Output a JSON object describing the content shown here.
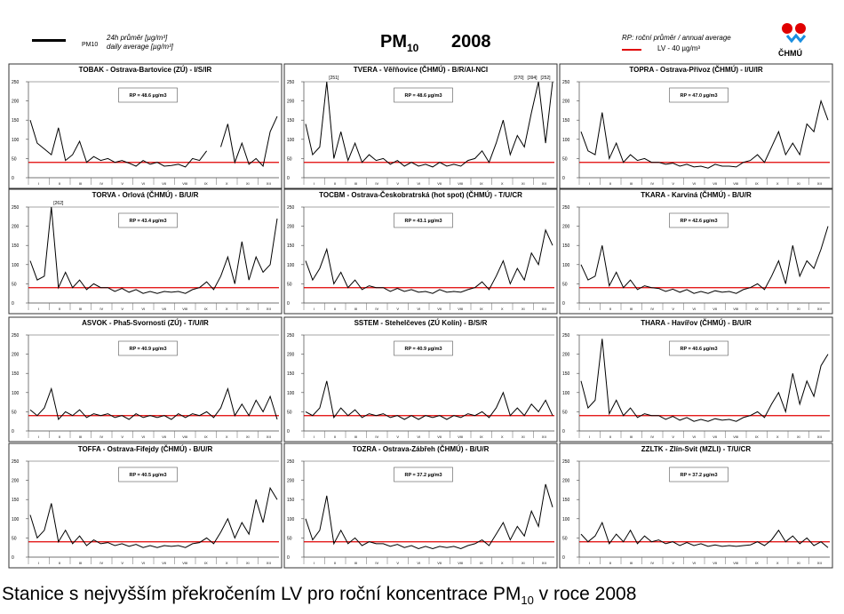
{
  "header": {
    "legend_pm_label": "PM10",
    "legend_daily_cz": "24h průměr [µg/m³]",
    "legend_daily_en": "daily average [µg/m³]",
    "title_main": "PM",
    "title_sub": "10",
    "year": "2008",
    "rp_legend": "RP: roční průměr / annual average",
    "lv_legend": "LV - 40 µg/m³",
    "logo_text": "ČHMÚ"
  },
  "caption": {
    "before": "Stanice s nejvyšším překročením LV pro roční koncentrace PM",
    "sub": "10",
    "after": " v roce 2008"
  },
  "colors": {
    "lv": "#e00000",
    "series": "#000000"
  },
  "chart_data": [
    {
      "type": "line",
      "title": "TOBAK - Ostrava-Bartovice (ZÚ) - I/S/IR",
      "rp": "RP = 48.6 µg/m3",
      "ylim": [
        0,
        250
      ],
      "yticks": [
        "0",
        "50",
        "100",
        "150",
        "200",
        "250"
      ],
      "lv": 40,
      "months": [
        "I",
        "II",
        "III",
        "IV",
        "V",
        "VI",
        "VII",
        "VIII",
        "IX",
        "X",
        "XI",
        "XII"
      ],
      "annotations": [],
      "values": [
        150,
        90,
        75,
        60,
        130,
        45,
        60,
        95,
        40,
        55,
        45,
        50,
        40,
        45,
        38,
        30,
        45,
        35,
        40,
        30,
        32,
        35,
        28,
        50,
        45,
        70,
        null,
        80,
        140,
        40,
        90,
        35,
        50,
        30,
        120,
        160
      ]
    },
    {
      "type": "line",
      "title": "TVERA - Věřňovice (ČHMÚ) - B/R/AI-NCI",
      "rp": "RP = 48.6 µg/m3",
      "ylim": [
        0,
        250
      ],
      "yticks": [
        "0",
        "50",
        "100",
        "150",
        "200",
        "250"
      ],
      "lv": 40,
      "months": [
        "I",
        "II",
        "III",
        "IV",
        "V",
        "VI",
        "VII",
        "VIII",
        "IX",
        "X",
        "XI",
        "XII"
      ],
      "annotations": [
        "[251]",
        "[270]",
        "[394]",
        "[252]"
      ],
      "values": [
        140,
        60,
        80,
        250,
        50,
        120,
        45,
        90,
        40,
        60,
        45,
        50,
        35,
        45,
        30,
        40,
        30,
        35,
        28,
        40,
        30,
        35,
        30,
        45,
        50,
        70,
        40,
        90,
        150,
        60,
        110,
        80,
        170,
        250,
        90,
        250
      ]
    },
    {
      "type": "line",
      "title": "TOPRA - Ostrava-Přívoz (ČHMÚ) - I/U/IR",
      "rp": "RP = 47.0 µg/m3",
      "ylim": [
        0,
        250
      ],
      "yticks": [
        "0",
        "50",
        "100",
        "150",
        "200",
        "250"
      ],
      "lv": 40,
      "months": [
        "I",
        "II",
        "III",
        "IV",
        "V",
        "VI",
        "VII",
        "VIII",
        "IX",
        "X",
        "XI",
        "XII"
      ],
      "annotations": [],
      "values": [
        120,
        70,
        60,
        170,
        50,
        90,
        40,
        60,
        45,
        50,
        40,
        40,
        35,
        38,
        30,
        35,
        28,
        30,
        25,
        35,
        30,
        30,
        28,
        40,
        45,
        60,
        40,
        80,
        120,
        60,
        90,
        60,
        140,
        120,
        200,
        150
      ]
    },
    {
      "type": "line",
      "title": "TORVA - Orlová (ČHMÚ) - B/U/R",
      "rp": "RP = 43.4 µg/m3",
      "ylim": [
        0,
        250
      ],
      "yticks": [
        "0",
        "50",
        "100",
        "150",
        "200",
        "250"
      ],
      "lv": 40,
      "months": [
        "I",
        "II",
        "III",
        "IV",
        "V",
        "VI",
        "VII",
        "VIII",
        "IX",
        "X",
        "XI",
        "XII"
      ],
      "annotations": [
        "[262]"
      ],
      "values": [
        110,
        60,
        70,
        250,
        40,
        80,
        40,
        60,
        35,
        50,
        40,
        40,
        30,
        38,
        28,
        35,
        25,
        30,
        25,
        30,
        28,
        30,
        25,
        35,
        40,
        55,
        35,
        70,
        120,
        50,
        160,
        60,
        120,
        80,
        100,
        220
      ]
    },
    {
      "type": "line",
      "title": "TOCBM - Ostrava-Českobratrská (hot spot) (ČHMÚ) - T/U/CR",
      "rp": "RP = 43.1 µg/m3",
      "ylim": [
        0,
        250
      ],
      "yticks": [
        "0",
        "50",
        "100",
        "150",
        "200",
        "250"
      ],
      "lv": 40,
      "months": [
        "I",
        "II",
        "III",
        "IV",
        "V",
        "VI",
        "VII",
        "VIII",
        "IX",
        "X",
        "XI",
        "XII"
      ],
      "annotations": [],
      "values": [
        110,
        60,
        90,
        140,
        50,
        80,
        40,
        60,
        35,
        45,
        40,
        40,
        30,
        38,
        30,
        35,
        28,
        30,
        25,
        35,
        28,
        30,
        28,
        35,
        40,
        55,
        35,
        70,
        110,
        50,
        90,
        60,
        130,
        100,
        190,
        150
      ]
    },
    {
      "type": "line",
      "title": "TKARA - Karviná (ČHMÚ) - B/U/R",
      "rp": "RP = 42.6 µg/m3",
      "ylim": [
        0,
        250
      ],
      "yticks": [
        "0",
        "50",
        "100",
        "150",
        "200",
        "250"
      ],
      "lv": 40,
      "months": [
        "I",
        "II",
        "III",
        "IV",
        "V",
        "VI",
        "VII",
        "VIII",
        "IX",
        "X",
        "XI",
        "XII"
      ],
      "annotations": [],
      "values": [
        100,
        60,
        70,
        150,
        45,
        80,
        40,
        60,
        35,
        45,
        40,
        38,
        30,
        36,
        28,
        35,
        25,
        30,
        25,
        32,
        28,
        30,
        25,
        35,
        40,
        50,
        35,
        70,
        110,
        50,
        150,
        70,
        110,
        90,
        140,
        200
      ]
    },
    {
      "type": "line",
      "title": "ASVOK - Pha5-Svornosti (ZÚ) - T/U/IR",
      "rp": "RP = 40.9 µg/m3",
      "ylim": [
        0,
        250
      ],
      "yticks": [
        "0",
        "50",
        "100",
        "150",
        "200",
        "250"
      ],
      "lv": 40,
      "months": [
        "I",
        "II",
        "III",
        "IV",
        "V",
        "VI",
        "VII",
        "VIII",
        "IX",
        "X",
        "XI",
        "XII"
      ],
      "annotations": [],
      "values": [
        55,
        40,
        60,
        110,
        30,
        50,
        40,
        55,
        35,
        45,
        40,
        45,
        35,
        40,
        30,
        45,
        35,
        40,
        35,
        40,
        30,
        45,
        35,
        45,
        40,
        50,
        35,
        60,
        110,
        40,
        70,
        40,
        80,
        50,
        90,
        30
      ]
    },
    {
      "type": "line",
      "title": "SSTEM - Stehelčeves (ZÚ Kolín) - B/S/R",
      "rp": "RP = 40.9 µg/m3",
      "ylim": [
        0,
        250
      ],
      "yticks": [
        "0",
        "50",
        "100",
        "150",
        "200",
        "250"
      ],
      "lv": 40,
      "months": [
        "I",
        "II",
        "III",
        "IV",
        "V",
        "VI",
        "VII",
        "VIII",
        "IX",
        "X",
        "XI",
        "XII"
      ],
      "annotations": [],
      "values": [
        50,
        40,
        60,
        130,
        35,
        60,
        40,
        55,
        35,
        45,
        40,
        45,
        35,
        40,
        30,
        40,
        30,
        40,
        35,
        40,
        30,
        40,
        35,
        45,
        40,
        50,
        35,
        60,
        100,
        40,
        60,
        40,
        70,
        50,
        80,
        40
      ]
    },
    {
      "type": "line",
      "title": "THARA - Havířov (ČHMÚ) - B/U/R",
      "rp": "RP = 40.6 µg/m3",
      "ylim": [
        0,
        250
      ],
      "yticks": [
        "0",
        "50",
        "100",
        "150",
        "200",
        "250"
      ],
      "lv": 40,
      "months": [
        "I",
        "II",
        "III",
        "IV",
        "V",
        "VI",
        "VII",
        "VIII",
        "IX",
        "X",
        "XI",
        "XII"
      ],
      "annotations": [],
      "values": [
        130,
        60,
        80,
        240,
        45,
        80,
        40,
        60,
        35,
        45,
        40,
        40,
        30,
        38,
        28,
        35,
        25,
        30,
        25,
        32,
        28,
        30,
        25,
        35,
        40,
        50,
        35,
        70,
        100,
        50,
        150,
        70,
        130,
        90,
        170,
        200
      ]
    },
    {
      "type": "line",
      "title": "TOFFA - Ostrava-Fifejdy (ČHMÚ) - B/U/R",
      "rp": "RP = 40.5 µg/m3",
      "ylim": [
        0,
        250
      ],
      "yticks": [
        "0",
        "50",
        "100",
        "150",
        "200",
        "250"
      ],
      "lv": 40,
      "months": [
        "I",
        "II",
        "III",
        "IV",
        "V",
        "VI",
        "VII",
        "VIII",
        "IX",
        "X",
        "XI",
        "XII"
      ],
      "annotations": [],
      "values": [
        110,
        50,
        70,
        140,
        40,
        70,
        35,
        55,
        30,
        45,
        35,
        38,
        30,
        35,
        28,
        33,
        25,
        30,
        25,
        30,
        28,
        30,
        25,
        35,
        38,
        50,
        35,
        65,
        100,
        50,
        90,
        60,
        150,
        90,
        180,
        150
      ]
    },
    {
      "type": "line",
      "title": "TOZRA - Ostrava-Zábřeh (ČHMÚ) - B/U/R",
      "rp": "RP = 37.2 µg/m3",
      "ylim": [
        0,
        250
      ],
      "yticks": [
        "0",
        "50",
        "100",
        "150",
        "200",
        "250"
      ],
      "lv": 40,
      "months": [
        "I",
        "II",
        "III",
        "IV",
        "V",
        "VI",
        "VII",
        "VIII",
        "IX",
        "X",
        "XI",
        "XII"
      ],
      "annotations": [],
      "values": [
        100,
        45,
        70,
        160,
        35,
        70,
        35,
        50,
        30,
        40,
        35,
        35,
        28,
        33,
        25,
        30,
        22,
        28,
        22,
        28,
        25,
        28,
        22,
        30,
        35,
        45,
        30,
        60,
        90,
        45,
        80,
        55,
        120,
        80,
        190,
        130
      ]
    },
    {
      "type": "line",
      "title": "ZZLTK - Zlín-Svit (MZLI) - T/U/CR",
      "rp": "RP = 37.2 µg/m3",
      "ylim": [
        0,
        250
      ],
      "yticks": [
        "0",
        "50",
        "100",
        "150",
        "200",
        "250"
      ],
      "lv": 40,
      "months": [
        "I",
        "II",
        "III",
        "IV",
        "V",
        "VI",
        "VII",
        "VIII",
        "IX",
        "X",
        "XI",
        "XII"
      ],
      "annotations": [],
      "values": [
        60,
        40,
        55,
        90,
        35,
        60,
        40,
        70,
        35,
        55,
        40,
        45,
        35,
        40,
        30,
        38,
        30,
        35,
        28,
        32,
        28,
        30,
        28,
        30,
        32,
        40,
        30,
        45,
        70,
        40,
        55,
        35,
        50,
        30,
        40,
        25
      ]
    }
  ]
}
